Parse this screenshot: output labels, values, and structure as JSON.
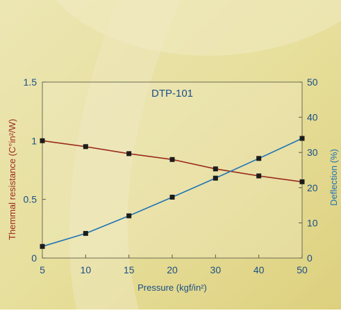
{
  "chart_data": {
    "type": "line",
    "title": "DTP-101",
    "xlabel": "Pressure (kgf/in²)",
    "x": [
      5,
      10,
      15,
      20,
      30,
      40,
      50
    ],
    "x_ticks": [
      "5",
      "10",
      "15",
      "20",
      "30",
      "40",
      "50"
    ],
    "x_scale": "categorical-evenly-spaced",
    "left_axis": {
      "label": "Themmal resistance (C°in²/W)",
      "ylim": [
        0,
        1.5
      ],
      "ticks": [
        "0",
        "0.5",
        "1",
        "1.5"
      ],
      "color": "#9b2b1d"
    },
    "right_axis": {
      "label": "Deflection (%)",
      "ylim": [
        0,
        50
      ],
      "ticks": [
        "0",
        "10",
        "20",
        "30",
        "40",
        "50"
      ],
      "color": "#1e73b6"
    },
    "series": [
      {
        "axis": "left",
        "color": "#9b2b1d",
        "values": [
          1.0,
          0.95,
          0.89,
          0.84,
          0.76,
          0.7,
          0.65
        ]
      },
      {
        "axis": "right",
        "color": "#1e73b6",
        "values": [
          3.3,
          7.0,
          12.0,
          17.3,
          22.7,
          28.3,
          34.0
        ]
      }
    ],
    "grid": false,
    "marker": "square"
  }
}
